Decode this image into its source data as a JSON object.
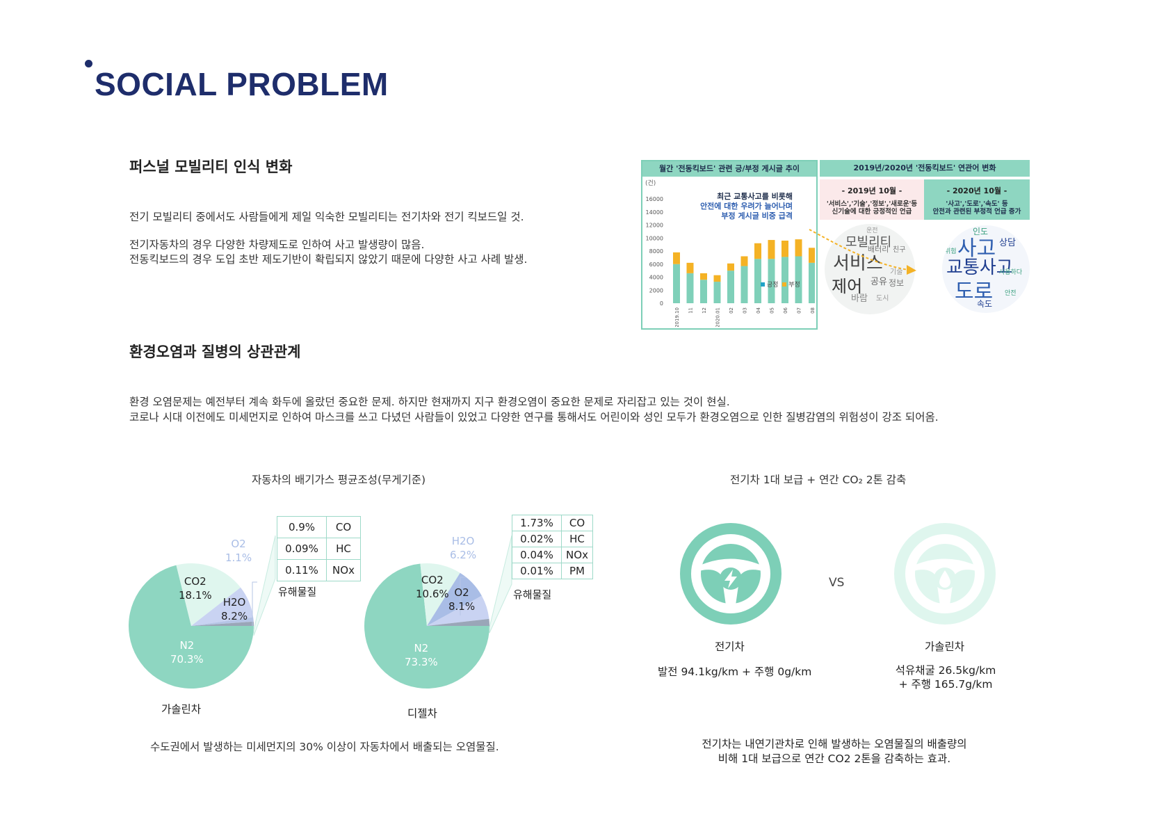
{
  "page": {
    "title": "SOCIAL PROBLEM"
  },
  "section1": {
    "title": "퍼스널 모빌리티 인식 변화",
    "lines": [
      "전기 모빌리티 중에서도 사람들에게 제일 익숙한 모빌리티는 전기차와 전기 킥보드일 것.",
      "전기자동차의 경우 다양한 차량제도로 인하여 사고 발생량이 많음.",
      "전동킥보드의 경우 도입 초반 제도기반이 확립되지 않았기 때문에 다양한 사고 사례 발생."
    ]
  },
  "news_chart": {
    "header": "월간 '전동킥보드' 관련 긍/부정 게시글 추이",
    "unit": "(건)",
    "annotation": [
      "최근 교통사고를 비롯해",
      "안전에 대한 우려가 늘어나며",
      "부정 게시글 비중 급격"
    ],
    "legend_pos": "긍정",
    "legend_neg": "부정",
    "colors": {
      "positive": "#7fd0b9",
      "negative": "#f4b225"
    }
  },
  "chart_data": {
    "type": "bar",
    "stacked": true,
    "categories": [
      "2019.10",
      "11",
      "12",
      "2020.01",
      "02",
      "03",
      "04",
      "05",
      "06",
      "07",
      "08",
      "09",
      "10"
    ],
    "series": [
      {
        "name": "긍정",
        "values": [
          6000,
          4600,
          3600,
          3300,
          5000,
          5700,
          6800,
          6800,
          7100,
          7200,
          6200,
          6300,
          8100
        ]
      },
      {
        "name": "부정",
        "values": [
          1800,
          1600,
          1000,
          1000,
          1100,
          1500,
          2400,
          2900,
          2500,
          2600,
          2300,
          2100,
          5700
        ]
      }
    ],
    "ylim": [
      0,
      16000
    ],
    "yticks": [
      0,
      2000,
      4000,
      6000,
      8000,
      10000,
      12000,
      14000,
      16000
    ],
    "legend": "bottom-right",
    "grid": false
  },
  "keyword_panel": {
    "header": "2019년/2020년 '전동킥보드' 연관어 변화",
    "left_title": "-   2019년 10월   -",
    "left_desc": [
      "'서비스','기술','정보','새로운'등",
      "신기술에 대한 긍정적인 언급"
    ],
    "right_title": "-   2020년 10월   -",
    "right_desc": [
      "'사고','도로','속도' 등",
      "안전과 관련된 부정적 언급 증가"
    ],
    "cloud_left_words": [
      "모빌리티",
      "서비스",
      "제어",
      "배터리",
      "친구",
      "공유",
      "정보",
      "바람",
      "운전",
      "도시",
      "기술"
    ],
    "cloud_right_words": [
      "사고",
      "교통사고",
      "도로",
      "상담",
      "인도",
      "속도",
      "사용하다",
      "위험",
      "안전"
    ]
  },
  "section2": {
    "title": "환경오염과 질병의 상관관계",
    "lines": [
      "환경 오염문제는 예전부터 계속 화두에 올랐던 중요한 문제. 하지만 현재까지 지구 환경오염이 중요한 문제로 자리잡고 있는 것이 현실.",
      "코로나 시대 이전에도 미세먼지로 인하여 마스크를 쓰고 다녔던 사람들이 있었고 다양한 연구를 통해서도 어린이와 성인 모두가 환경오염으로 인한 질병감염의 위험성이 강조 되어옴."
    ]
  },
  "exhaust": {
    "title": "자동차의 배기가스 평균조성(무게기준)",
    "gasoline": {
      "name": "가솔린차",
      "n2": "N2",
      "n2_pct": "70.3%",
      "co2": "CO2",
      "co2_pct": "18.1%",
      "h2o": "H2O",
      "h2o_pct": "8.2%",
      "o2": "O2",
      "o2_pct": "1.1%",
      "values": {
        "N2": 70.3,
        "CO2": 18.1,
        "H2O": 8.2,
        "O2": 1.1,
        "harmful": 1.1
      },
      "harmful_label": "유해물질",
      "table": [
        [
          "0.9%",
          "CO"
        ],
        [
          "0.09%",
          "HC"
        ],
        [
          "0.11%",
          "NOx"
        ]
      ]
    },
    "diesel": {
      "name": "디젤차",
      "n2": "N2",
      "n2_pct": "73.3%",
      "co2": "CO2",
      "co2_pct": "10.6%",
      "o2": "O2",
      "o2_pct": "8.1%",
      "h2o": "H2O",
      "h2o_pct": "6.2%",
      "values": {
        "N2": 73.3,
        "CO2": 10.6,
        "O2": 8.1,
        "H2O": 6.2,
        "harmful": 1.8
      },
      "harmful_label": "유해물질",
      "table": [
        [
          "1.73%",
          "CO"
        ],
        [
          "0.02%",
          "HC"
        ],
        [
          "0.04%",
          "NOx"
        ],
        [
          "0.01%",
          "PM"
        ]
      ]
    },
    "caption": "수도권에서 발생하는 미세먼지의 30% 이상이 자동차에서 배출되는 오염물질."
  },
  "ev": {
    "title": "전기차 1대 보급 + 연간 CO₂ 2톤 감축",
    "vs": "VS",
    "electric": {
      "name": "전기차",
      "detail": "발전 94.1kg/km + 주행 0g/km"
    },
    "gasoline": {
      "name": "가솔린차",
      "detail1": "석유채굴 26.5kg/km",
      "detail2": "+ 주행 165.7g/km"
    },
    "caption1": "전기차는 내연기관차로 인해 발생하는 오염물질의 배출량의",
    "caption2": "비해 1대 보급으로 연간 CO2 2톤을 감축하는 효과."
  },
  "colors": {
    "navy": "#1e2d6b",
    "mint": "#8ed6c1",
    "mint_dark": "#7dcfb7",
    "mint_light": "#dff6ee",
    "lavender": "#c9d3f2",
    "slate": "#9aa6b8"
  }
}
